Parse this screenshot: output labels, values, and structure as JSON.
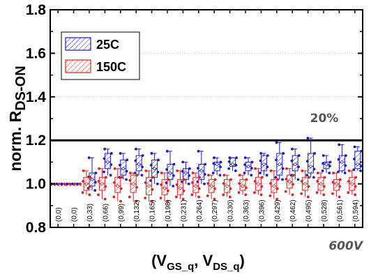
{
  "chart_data": {
    "type": "box",
    "xlabel_parts": {
      "open": "(V",
      "sub1": "GS_q",
      "mid": ", V",
      "sub2": "DS_q",
      "close": ")"
    },
    "ylabel_parts": {
      "main": "norm. R",
      "sub": "DS-ON"
    },
    "ylim": [
      0.8,
      1.8
    ],
    "yticks": [
      "0.8",
      "1.0",
      "1.2",
      "1.4",
      "1.6",
      "1.8"
    ],
    "categories": [
      "(0,0)",
      "(0,0)",
      "(0,33)",
      "(0,66)",
      "(0,99)",
      "(0,132)",
      "(0,165)",
      "(0,198)",
      "(0,231)",
      "(0,264)",
      "(0,297)",
      "(0,330)",
      "(0,363)",
      "(0,396)",
      "(0,429)",
      "(0,462)",
      "(0,495)",
      "(0,528)",
      "(0,561)",
      "(0,594)"
    ],
    "series": [
      {
        "name": "25C",
        "color": "#1a1acc",
        "boxes": [
          null,
          null,
          [
            0.97,
            0.99,
            1.02,
            1.05,
            1.12
          ],
          [
            1.04,
            1.07,
            1.1,
            1.14,
            1.16
          ],
          [
            1.02,
            1.04,
            1.07,
            1.11,
            1.14
          ],
          [
            1.04,
            1.06,
            1.09,
            1.13,
            1.16
          ],
          [
            1.0,
            1.03,
            1.07,
            1.11,
            1.14
          ],
          [
            0.99,
            1.02,
            1.05,
            1.09,
            1.15
          ],
          [
            1.0,
            1.02,
            1.05,
            1.07,
            1.1
          ],
          [
            1.0,
            1.02,
            1.06,
            1.09,
            1.15
          ],
          [
            1.04,
            1.06,
            1.09,
            1.1,
            1.12
          ],
          [
            1.06,
            1.08,
            1.09,
            1.12,
            1.12
          ],
          [
            1.04,
            1.06,
            1.08,
            1.1,
            1.12
          ],
          [
            1.04,
            1.06,
            1.09,
            1.13,
            1.14
          ],
          [
            1.02,
            1.04,
            1.09,
            1.14,
            1.19
          ],
          [
            1.02,
            1.06,
            1.09,
            1.13,
            1.16
          ],
          [
            1.03,
            1.05,
            1.08,
            1.14,
            1.21
          ],
          [
            1.05,
            1.07,
            1.09,
            1.1,
            1.13
          ],
          [
            1.05,
            1.06,
            1.1,
            1.13,
            1.18
          ],
          [
            1.06,
            1.07,
            1.09,
            1.15,
            1.17
          ]
        ]
      },
      {
        "name": "150C",
        "color": "#dd2222",
        "boxes": [
          null,
          null,
          [
            0.95,
            0.97,
            1.0,
            1.03,
            1.06
          ],
          [
            0.93,
            0.97,
            1.0,
            1.03,
            1.07
          ],
          [
            0.92,
            0.96,
            0.99,
            1.03,
            1.07
          ],
          [
            0.92,
            0.96,
            1.0,
            1.04,
            1.05
          ],
          [
            0.92,
            0.95,
            0.99,
            1.03,
            1.06
          ],
          [
            0.92,
            0.95,
            0.98,
            1.02,
            1.05
          ],
          [
            0.93,
            0.95,
            0.98,
            1.02,
            1.06
          ],
          [
            0.94,
            0.96,
            0.99,
            1.03,
            1.05
          ],
          [
            0.93,
            0.96,
            0.99,
            1.02,
            1.04
          ],
          [
            0.94,
            0.96,
            0.99,
            1.02,
            1.04
          ],
          [
            0.95,
            0.97,
            0.99,
            1.02,
            1.04
          ],
          [
            0.95,
            0.97,
            1.0,
            1.03,
            1.07
          ],
          [
            0.93,
            0.96,
            0.99,
            1.02,
            1.06
          ],
          [
            0.95,
            0.98,
            1.01,
            1.04,
            1.07
          ],
          [
            0.94,
            0.97,
            1.0,
            1.03,
            1.06
          ],
          [
            0.95,
            0.97,
            1.0,
            1.03,
            1.05
          ],
          [
            0.94,
            0.97,
            1.0,
            1.02,
            1.05
          ],
          [
            0.95,
            0.97,
            1.0,
            1.03,
            1.06
          ]
        ]
      }
    ],
    "baseline": {
      "value": 1.0,
      "categories": [
        0,
        1
      ]
    },
    "threshold": {
      "value": 1.2,
      "label": "20%",
      "color": "#000000"
    },
    "annotation": "600V",
    "legend": "top-left",
    "grid": "dotted-horizontal"
  }
}
